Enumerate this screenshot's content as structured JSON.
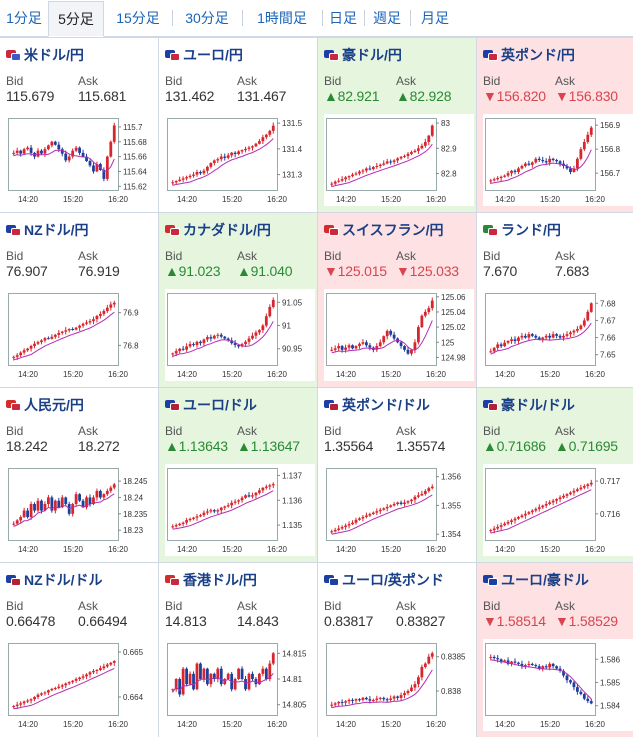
{
  "tabs": [
    "1分足",
    "5分足",
    "15分足",
    "30分足",
    "1時間足",
    "日足",
    "週足",
    "月足"
  ],
  "active_tab": 1,
  "labels": {
    "bid": "Bid",
    "ask": "Ask"
  },
  "colors": {
    "title": "#1a3f86",
    "up_bg": "#e6f5de",
    "down_bg": "#fde1e3",
    "up_text": "#2a8a34",
    "down_text": "#d9454f",
    "candle_up": "#d7262e",
    "candle_down": "#1f3f9c",
    "ma": "#b52db3"
  },
  "cards": [
    {
      "name": "米ドル/円",
      "status": "neutral",
      "bid": "115.679",
      "ask": "115.681",
      "flags": [
        "#c9283e",
        "#3b5cc4"
      ],
      "chart_data": {
        "type": "candlestick",
        "x_ticks": [
          "14:20",
          "15:20",
          "16:20"
        ],
        "y_ticks": [
          "115.7",
          "115.68",
          "115.66",
          "115.64",
          "115.62"
        ],
        "ylim": [
          115.615,
          115.712
        ],
        "series": [
          115.665,
          115.668,
          115.664,
          115.67,
          115.672,
          115.665,
          115.66,
          115.668,
          115.664,
          115.67,
          115.675,
          115.68,
          115.676,
          115.67,
          115.664,
          115.655,
          115.66,
          115.668,
          115.672,
          115.665,
          115.66,
          115.654,
          115.648,
          115.64,
          115.65,
          115.642,
          115.63,
          115.66,
          115.68,
          115.702
        ]
      }
    },
    {
      "name": "ユーロ/円",
      "status": "neutral",
      "bid": "131.462",
      "ask": "131.467",
      "flags": [
        "#1d3fa3",
        "#c9283e"
      ],
      "chart_data": {
        "type": "candlestick",
        "x_ticks": [
          "14:20",
          "15:20",
          "16:20"
        ],
        "y_ticks": [
          "131.5",
          "131.4",
          "131.3"
        ],
        "ylim": [
          131.24,
          131.52
        ],
        "series": [
          131.27,
          131.275,
          131.28,
          131.285,
          131.29,
          131.295,
          131.3,
          131.31,
          131.305,
          131.315,
          131.33,
          131.345,
          131.355,
          131.36,
          131.37,
          131.365,
          131.375,
          131.385,
          131.38,
          131.39,
          131.395,
          131.4,
          131.405,
          131.41,
          131.42,
          131.43,
          131.445,
          131.455,
          131.47,
          131.49
        ]
      }
    },
    {
      "name": "豪ドル/円",
      "status": "up",
      "bid": "▲82.921",
      "ask": "▲82.928",
      "flags": [
        "#1d3fa3",
        "#c9283e"
      ],
      "chart_data": {
        "type": "candlestick",
        "x_ticks": [
          "14:20",
          "15:20",
          "16:20"
        ],
        "y_ticks": [
          "83",
          "82.9",
          "82.8"
        ],
        "ylim": [
          82.735,
          83.02
        ],
        "series": [
          82.76,
          82.768,
          82.772,
          82.778,
          82.785,
          82.79,
          82.796,
          82.8,
          82.808,
          82.812,
          82.82,
          82.818,
          82.826,
          82.83,
          82.835,
          82.84,
          82.848,
          82.846,
          82.852,
          82.86,
          82.866,
          82.87,
          82.878,
          82.885,
          82.89,
          82.9,
          82.91,
          82.925,
          82.95,
          82.99
        ]
      }
    },
    {
      "name": "英ポンド/円",
      "status": "down",
      "bid": "▼156.820",
      "ask": "▼156.830",
      "flags": [
        "#1d3fa3",
        "#c9283e"
      ],
      "chart_data": {
        "type": "candlestick",
        "x_ticks": [
          "14:20",
          "15:20",
          "16:20"
        ],
        "y_ticks": [
          "156.9",
          "156.8",
          "156.7"
        ],
        "ylim": [
          156.63,
          156.93
        ],
        "series": [
          156.67,
          156.675,
          156.68,
          156.685,
          156.69,
          156.7,
          156.71,
          156.705,
          156.72,
          156.73,
          156.74,
          156.735,
          156.745,
          156.76,
          156.755,
          156.75,
          156.745,
          156.76,
          156.755,
          156.75,
          156.74,
          156.73,
          156.72,
          156.705,
          156.72,
          156.76,
          156.8,
          156.83,
          156.86,
          156.89
        ]
      }
    },
    {
      "name": "NZドル/円",
      "status": "neutral",
      "bid": "76.907",
      "ask": "76.919",
      "flags": [
        "#1d3fa3",
        "#c9283e"
      ],
      "chart_data": {
        "type": "candlestick",
        "x_ticks": [
          "14:20",
          "15:20",
          "16:20"
        ],
        "y_ticks": [
          "76.9",
          "76.8"
        ],
        "ylim": [
          76.74,
          76.96
        ],
        "series": [
          76.765,
          76.77,
          76.778,
          76.785,
          76.79,
          76.798,
          76.805,
          76.81,
          76.815,
          76.822,
          76.82,
          76.826,
          76.832,
          76.838,
          76.842,
          76.846,
          76.85,
          76.848,
          76.854,
          76.86,
          76.866,
          76.87,
          76.874,
          76.88,
          76.89,
          76.896,
          76.905,
          76.915,
          76.925,
          76.93
        ]
      }
    },
    {
      "name": "カナダドル/円",
      "status": "up",
      "bid": "▲91.023",
      "ask": "▲91.040",
      "flags": [
        "#d42b2b",
        "#c9283e"
      ],
      "chart_data": {
        "type": "candlestick",
        "x_ticks": [
          "14:20",
          "15:20",
          "16:20"
        ],
        "y_ticks": [
          "91.05",
          "91",
          "90.95"
        ],
        "ylim": [
          90.915,
          91.07
        ],
        "series": [
          90.94,
          90.945,
          90.95,
          90.948,
          90.955,
          90.96,
          90.958,
          90.965,
          90.962,
          90.97,
          90.975,
          90.972,
          90.978,
          90.98,
          90.976,
          90.972,
          90.968,
          90.962,
          90.958,
          90.955,
          90.96,
          90.965,
          90.972,
          90.978,
          90.985,
          90.99,
          91.0,
          91.02,
          91.04,
          91.055
        ]
      }
    },
    {
      "name": "スイスフラン/円",
      "status": "down",
      "bid": "▼125.015",
      "ask": "▼125.033",
      "flags": [
        "#d42b2b",
        "#c9283e"
      ],
      "chart_data": {
        "type": "candlestick",
        "x_ticks": [
          "14:20",
          "15:20",
          "16:20"
        ],
        "y_ticks": [
          "125.06",
          "125.04",
          "125.02",
          "125",
          "124.98"
        ],
        "ylim": [
          124.97,
          125.065
        ],
        "series": [
          124.99,
          124.992,
          124.995,
          124.99,
          124.993,
          124.996,
          124.992,
          124.995,
          124.998,
          125.0,
          124.996,
          124.993,
          124.99,
          124.995,
          125.0,
          125.008,
          125.015,
          125.01,
          125.005,
          125.0,
          124.995,
          124.99,
          124.985,
          124.99,
          125.0,
          125.02,
          125.035,
          125.04,
          125.045,
          125.055
        ]
      }
    },
    {
      "name": "ランド/円",
      "status": "neutral",
      "bid": "7.670",
      "ask": "7.683",
      "flags": [
        "#2a8a34",
        "#c9283e"
      ],
      "chart_data": {
        "type": "candlestick",
        "x_ticks": [
          "14:20",
          "15:20",
          "16:20"
        ],
        "y_ticks": [
          "7.68",
          "7.67",
          "7.66",
          "7.65"
        ],
        "ylim": [
          7.644,
          7.686
        ],
        "series": [
          7.652,
          7.654,
          7.656,
          7.655,
          7.657,
          7.658,
          7.659,
          7.658,
          7.66,
          7.661,
          7.66,
          7.662,
          7.661,
          7.66,
          7.659,
          7.66,
          7.661,
          7.66,
          7.662,
          7.661,
          7.66,
          7.661,
          7.662,
          7.663,
          7.664,
          7.665,
          7.667,
          7.67,
          7.675,
          7.68
        ]
      }
    },
    {
      "name": "人民元/円",
      "status": "neutral",
      "bid": "18.242",
      "ask": "18.272",
      "flags": [
        "#d42b2b",
        "#c9283e"
      ],
      "chart_data": {
        "type": "candlestick",
        "x_ticks": [
          "14:20",
          "15:20",
          "16:20"
        ],
        "y_ticks": [
          "18.245",
          "18.24",
          "18.235",
          "18.23"
        ],
        "ylim": [
          18.227,
          18.249
        ],
        "series": [
          18.232,
          18.233,
          18.234,
          18.236,
          18.234,
          18.238,
          18.236,
          18.239,
          18.236,
          18.238,
          18.24,
          18.236,
          18.239,
          18.237,
          18.24,
          18.238,
          18.235,
          18.238,
          18.241,
          18.239,
          18.237,
          18.24,
          18.238,
          18.24,
          18.242,
          18.24,
          18.241,
          18.242,
          18.243,
          18.244
        ]
      }
    },
    {
      "name": "ユーロ/ドル",
      "status": "up",
      "bid": "▲1.13643",
      "ask": "▲1.13647",
      "flags": [
        "#1d3fa3",
        "#b22234"
      ],
      "chart_data": {
        "type": "candlestick",
        "x_ticks": [
          "14:20",
          "15:20",
          "16:20"
        ],
        "y_ticks": [
          "1.137",
          "1.136",
          "1.135"
        ],
        "ylim": [
          1.1344,
          1.1373
        ],
        "series": [
          1.13495,
          1.135,
          1.13505,
          1.1351,
          1.1352,
          1.13525,
          1.1353,
          1.13535,
          1.1354,
          1.1355,
          1.13555,
          1.1356,
          1.13555,
          1.1356,
          1.1357,
          1.13575,
          1.1358,
          1.1359,
          1.13595,
          1.136,
          1.1361,
          1.1362,
          1.13615,
          1.1362,
          1.1363,
          1.1364,
          1.1365,
          1.13655,
          1.1366,
          1.13665
        ]
      }
    },
    {
      "name": "英ポンド/ドル",
      "status": "neutral",
      "bid": "1.35564",
      "ask": "1.35574",
      "flags": [
        "#1d3fa3",
        "#b22234"
      ],
      "chart_data": {
        "type": "candlestick",
        "x_ticks": [
          "14:20",
          "15:20",
          "16:20"
        ],
        "y_ticks": [
          "1.356",
          "1.355",
          "1.354"
        ],
        "ylim": [
          1.3538,
          1.3563
        ],
        "series": [
          1.3541,
          1.35415,
          1.3542,
          1.35425,
          1.3543,
          1.35435,
          1.3544,
          1.3545,
          1.35455,
          1.3546,
          1.35465,
          1.3547,
          1.35475,
          1.3548,
          1.35485,
          1.3549,
          1.35495,
          1.355,
          1.35505,
          1.3551,
          1.35505,
          1.3551,
          1.35515,
          1.3552,
          1.3553,
          1.35535,
          1.3554,
          1.3555,
          1.3556,
          1.35565
        ]
      }
    },
    {
      "name": "豪ドル/ドル",
      "status": "up",
      "bid": "▲0.71686",
      "ask": "▲0.71695",
      "flags": [
        "#1d3fa3",
        "#b22234"
      ],
      "chart_data": {
        "type": "candlestick",
        "x_ticks": [
          "14:20",
          "15:20",
          "16:20"
        ],
        "y_ticks": [
          "0.717",
          "0.716"
        ],
        "ylim": [
          0.7152,
          0.7174
        ],
        "series": [
          0.7155,
          0.71555,
          0.7156,
          0.71565,
          0.7157,
          0.71575,
          0.7158,
          0.71585,
          0.7159,
          0.71595,
          0.716,
          0.71605,
          0.7161,
          0.71615,
          0.7162,
          0.71625,
          0.7163,
          0.71635,
          0.7164,
          0.71645,
          0.7165,
          0.71655,
          0.7166,
          0.71665,
          0.7167,
          0.71675,
          0.7168,
          0.71685,
          0.7169,
          0.71695
        ]
      }
    },
    {
      "name": "NZドル/ドル",
      "status": "neutral",
      "bid": "0.66478",
      "ask": "0.66494",
      "flags": [
        "#1d3fa3",
        "#b22234"
      ],
      "chart_data": {
        "type": "candlestick",
        "x_ticks": [
          "14:20",
          "15:20",
          "16:20"
        ],
        "y_ticks": [
          "0.665",
          "0.664"
        ],
        "ylim": [
          0.6636,
          0.6652
        ],
        "series": [
          0.6638,
          0.66383,
          0.66386,
          0.6639,
          0.66392,
          0.66395,
          0.664,
          0.66405,
          0.66408,
          0.6641,
          0.66415,
          0.66418,
          0.6642,
          0.66423,
          0.66426,
          0.6643,
          0.66433,
          0.66436,
          0.6644,
          0.66443,
          0.66446,
          0.6645,
          0.66455,
          0.66458,
          0.6646,
          0.66464,
          0.66468,
          0.66472,
          0.66476,
          0.6648
        ]
      }
    },
    {
      "name": "香港ドル/円",
      "status": "neutral",
      "bid": "14.813",
      "ask": "14.843",
      "flags": [
        "#d42b2b",
        "#c9283e"
      ],
      "chart_data": {
        "type": "candlestick",
        "x_ticks": [
          "14:20",
          "15:20",
          "16:20"
        ],
        "y_ticks": [
          "14.815",
          "14.81",
          "14.805"
        ],
        "ylim": [
          14.803,
          14.817
        ],
        "series": [
          14.808,
          14.81,
          14.807,
          14.812,
          14.809,
          14.811,
          14.808,
          14.813,
          14.81,
          14.812,
          14.809,
          14.811,
          14.81,
          14.812,
          14.809,
          14.81,
          14.811,
          14.808,
          14.81,
          14.812,
          14.81,
          14.808,
          14.811,
          14.81,
          14.809,
          14.811,
          14.812,
          14.81,
          14.813,
          14.815
        ]
      }
    },
    {
      "name": "ユーロ/英ポンド",
      "status": "neutral",
      "bid": "0.83817",
      "ask": "0.83827",
      "flags": [
        "#1d3fa3",
        "#1d3fa3"
      ],
      "chart_data": {
        "type": "candlestick",
        "x_ticks": [
          "14:20",
          "15:20",
          "16:20"
        ],
        "y_ticks": [
          "0.8385",
          "0.838"
        ],
        "ylim": [
          0.83765,
          0.8387
        ],
        "series": [
          0.8378,
          0.83782,
          0.83784,
          0.83783,
          0.83785,
          0.83787,
          0.83786,
          0.83788,
          0.83787,
          0.8379,
          0.83788,
          0.83786,
          0.83787,
          0.83789,
          0.8379,
          0.83788,
          0.83787,
          0.83789,
          0.83792,
          0.8379,
          0.83794,
          0.83797,
          0.838,
          0.83805,
          0.8381,
          0.8382,
          0.83835,
          0.8384,
          0.8385,
          0.83855
        ]
      }
    },
    {
      "name": "ユーロ/豪ドル",
      "status": "down",
      "bid": "▼1.58514",
      "ask": "▼1.58529",
      "flags": [
        "#1d3fa3",
        "#1d3fa3"
      ],
      "chart_data": {
        "type": "candlestick",
        "x_ticks": [
          "14:20",
          "15:20",
          "16:20"
        ],
        "y_ticks": [
          "1.586",
          "1.585",
          "1.584"
        ],
        "ylim": [
          1.5836,
          1.5867
        ],
        "series": [
          1.5861,
          1.58605,
          1.586,
          1.5859,
          1.58595,
          1.5858,
          1.5859,
          1.58585,
          1.5858,
          1.5857,
          1.58575,
          1.5858,
          1.58575,
          1.5857,
          1.5856,
          1.5857,
          1.58565,
          1.5858,
          1.5857,
          1.5856,
          1.5855,
          1.5853,
          1.5851,
          1.585,
          1.5848,
          1.5846,
          1.5845,
          1.5843,
          1.5842,
          1.5841
        ]
      }
    }
  ]
}
